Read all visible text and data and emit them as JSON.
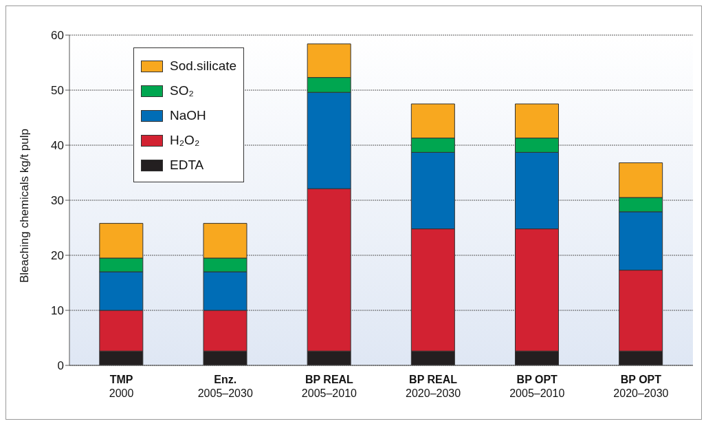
{
  "chart_data": {
    "type": "bar",
    "stacked": true,
    "ylabel": "Bleaching chemicals kg/t pulp",
    "categories": [
      "TMP\n2000",
      "Enz.\n2005–2030",
      "BP REAL\n2005–2010",
      "BP REAL\n2020–2030",
      "BP OPT\n2005–2010",
      "BP OPT\n2020–2030"
    ],
    "series": [
      {
        "name": "EDTA",
        "color": "#231f20",
        "values": [
          2.6,
          2.6,
          2.6,
          2.6,
          2.6,
          2.6
        ]
      },
      {
        "name": "H₂O₂",
        "color": "#d22232",
        "values": [
          7.4,
          7.4,
          29.5,
          22.2,
          22.2,
          14.7
        ]
      },
      {
        "name": "NaOH",
        "color": "#006db6",
        "values": [
          7.0,
          7.0,
          17.5,
          13.9,
          13.9,
          10.6
        ]
      },
      {
        "name": "SO₂",
        "color": "#00a650",
        "values": [
          2.5,
          2.5,
          2.7,
          2.6,
          2.6,
          2.6
        ]
      },
      {
        "name": "Sod.silicate",
        "color": "#f8a81f",
        "values": [
          6.3,
          6.3,
          6.1,
          6.2,
          6.2,
          6.3
        ]
      }
    ],
    "ylim": [
      0,
      60
    ],
    "yticks": [
      0,
      10,
      20,
      30,
      40,
      50,
      60
    ],
    "grid": "y",
    "legend": "top left"
  }
}
